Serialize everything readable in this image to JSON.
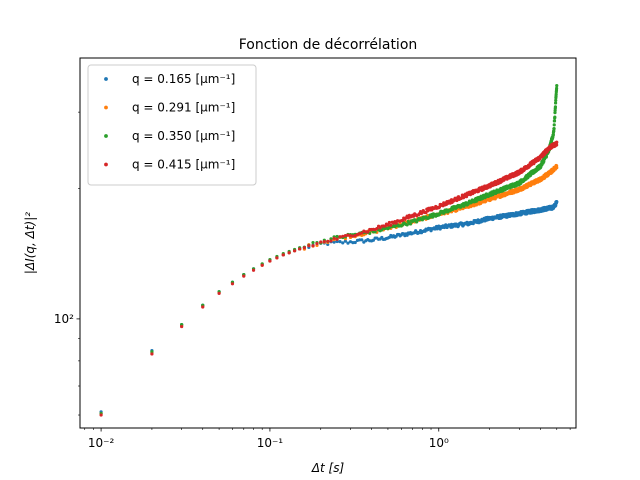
{
  "chart_data": {
    "type": "scatter",
    "title": "Fonction de décorrélation",
    "xlabel": "Δt [s]",
    "ylabel": "|ΔI(q, Δt)|²",
    "xscale": "log",
    "yscale": "log",
    "xlim": [
      0.0075,
      6.5
    ],
    "ylim": [
      56,
      400
    ],
    "x_ticks": [
      {
        "value": 0.01,
        "label": "10⁻²"
      },
      {
        "value": 0.1,
        "label": "10⁻¹"
      },
      {
        "value": 1,
        "label": "10⁰"
      }
    ],
    "y_ticks": [
      {
        "value": 100,
        "label": "10²"
      }
    ],
    "grid": false,
    "legend": "top-left",
    "series": [
      {
        "name": "q = 0.165 [μm⁻¹]",
        "color": "#1f77b4",
        "key_x": [
          0.01,
          0.02,
          0.03,
          0.04,
          0.05,
          0.06,
          0.07,
          0.08,
          0.09,
          0.1,
          0.12,
          0.15,
          0.2,
          0.25,
          0.3,
          0.4,
          0.5,
          0.7,
          1.0,
          1.5,
          2.0,
          3.0,
          4.0,
          4.8,
          5.0
        ],
        "key_y": [
          61,
          84.5,
          97,
          107.5,
          115.5,
          121.5,
          126.5,
          130.5,
          133.5,
          136.5,
          140.5,
          145,
          149,
          150,
          150.5,
          152,
          154,
          158,
          162.5,
          166,
          170.5,
          175,
          178.5,
          181,
          186
        ]
      },
      {
        "name": "q = 0.291 [μm⁻¹]",
        "color": "#ff7f0e",
        "key_x": [
          0.01,
          0.02,
          0.03,
          0.04,
          0.05,
          0.06,
          0.07,
          0.08,
          0.09,
          0.1,
          0.12,
          0.15,
          0.2,
          0.25,
          0.3,
          0.4,
          0.5,
          0.7,
          1.0,
          1.5,
          2.0,
          3.0,
          4.0,
          4.6,
          5.0
        ],
        "key_y": [
          60.5,
          83.5,
          96.5,
          107,
          115,
          121,
          126,
          130,
          133,
          136,
          140.5,
          145,
          150,
          153,
          155.5,
          158.5,
          162,
          168,
          174.5,
          182,
          189,
          199,
          210,
          218,
          225
        ]
      },
      {
        "name": "q = 0.350 [μm⁻¹]",
        "color": "#2ca02c",
        "key_x": [
          0.01,
          0.02,
          0.03,
          0.04,
          0.05,
          0.06,
          0.07,
          0.08,
          0.09,
          0.1,
          0.12,
          0.15,
          0.2,
          0.25,
          0.3,
          0.4,
          0.5,
          0.7,
          1.0,
          1.5,
          2.0,
          3.0,
          4.0,
          4.5,
          4.8,
          5.0
        ],
        "key_y": [
          60.5,
          84,
          97,
          107.5,
          115.5,
          121.5,
          126.5,
          130.5,
          134,
          137,
          141.5,
          146,
          151,
          154,
          156,
          159,
          162,
          167.5,
          175,
          185,
          194,
          206,
          225,
          245,
          270,
          345
        ]
      },
      {
        "name": "q = 0.415 [μm⁻¹]",
        "color": "#d62728",
        "key_x": [
          0.01,
          0.02,
          0.03,
          0.04,
          0.05,
          0.06,
          0.07,
          0.08,
          0.09,
          0.1,
          0.12,
          0.15,
          0.2,
          0.25,
          0.3,
          0.4,
          0.5,
          0.7,
          1.0,
          1.5,
          2.0,
          3.0,
          4.0,
          4.5,
          5.0
        ],
        "key_y": [
          60,
          83,
          96,
          106.5,
          114.5,
          120.5,
          125.5,
          129.5,
          133,
          136,
          140.5,
          145,
          150,
          153,
          156,
          160.5,
          165,
          173,
          182,
          194,
          203,
          218,
          236,
          248,
          254
        ]
      }
    ]
  }
}
